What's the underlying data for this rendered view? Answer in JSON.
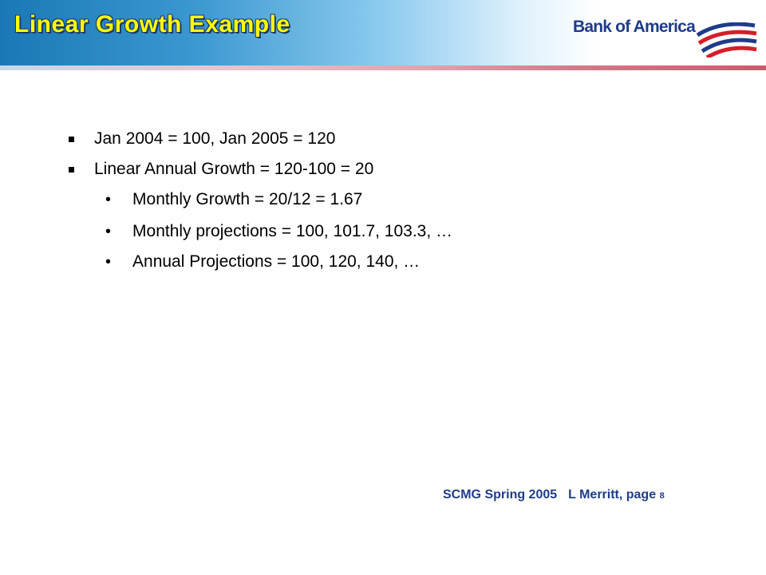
{
  "slide": {
    "title": "Linear Growth Example",
    "logo_text": "Bank of America",
    "bullets": [
      {
        "level": 1,
        "text": "Jan 2004 = 100, Jan 2005 = 120"
      },
      {
        "level": 1,
        "text": "Linear Annual Growth = 120-100 = 20"
      },
      {
        "level": 2,
        "text": "Monthly Growth = 20/12 = 1.67"
      },
      {
        "level": 2,
        "text": "Monthly projections = 100, 101.7, 103.3, …"
      },
      {
        "level": 2,
        "text": "Annual Projections = 100, 120, 140, …"
      }
    ],
    "footer": {
      "event": "SCMG Spring 2005",
      "author_page": "L Merritt, page",
      "page_number": "8"
    }
  },
  "colors": {
    "title_fill": "#ffff00",
    "title_outline": "#1b3a6b",
    "brand_blue": "#1f3c88",
    "brand_red": "#d71e28"
  }
}
